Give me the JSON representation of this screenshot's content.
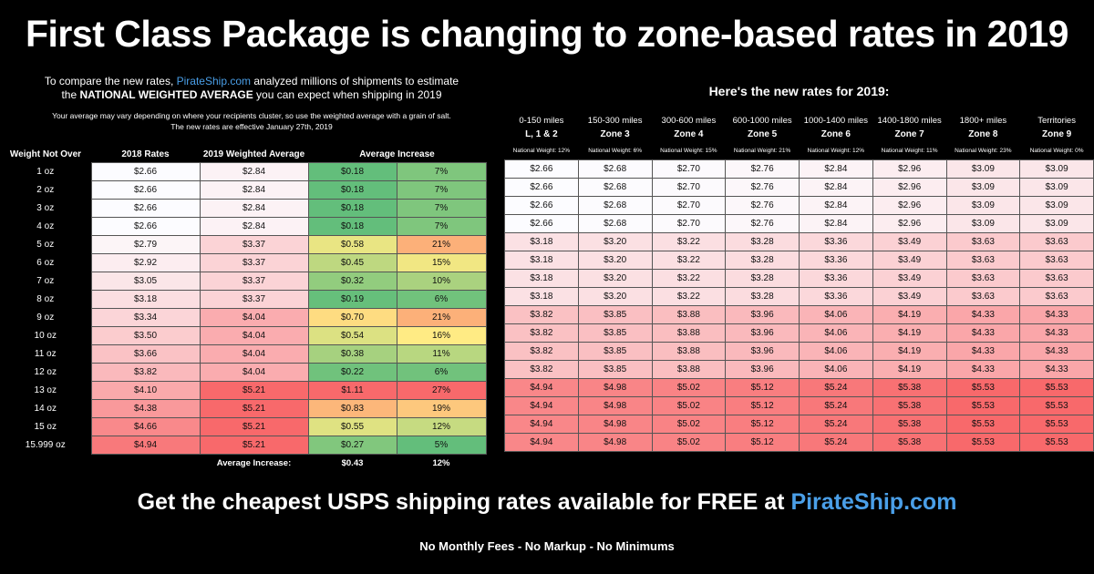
{
  "title": "First Class Package is changing to zone-based rates in 2019",
  "intro": {
    "line1_pre": "To compare the new rates, ",
    "line1_link": "PirateShip.com",
    "line1_post": " analyzed millions of shipments to estimate",
    "line2_pre": "the ",
    "line2_bold": "NATIONAL WEIGHTED AVERAGE",
    "line2_post": " you can expect when shipping in 2019",
    "small1": "Your average may vary depending on where your recipients cluster, so use the weighted average with a grain of salt.",
    "small2": "The new rates are effective January 27th, 2019"
  },
  "right_heading": "Here's the new rates for 2019:",
  "cta": {
    "text": "Get the cheapest USPS shipping rates available for FREE at ",
    "link": "PirateShip.com"
  },
  "footer": "No Monthly Fees - No Markup - No Minimums",
  "colors": {
    "background": "#000000",
    "link": "#4a9fe8",
    "green": "#63be7b",
    "yellow": "#ffeb84",
    "red": "#f8696b"
  },
  "chart_data": [
    {
      "type": "table",
      "columns": [
        "Weight Not Over",
        "2018 Rates",
        "2019 Weighted Average",
        "Average Increase",
        ""
      ],
      "rows": [
        [
          "1 oz",
          "$2.66",
          "$2.84",
          "$0.18",
          "7%"
        ],
        [
          "2 oz",
          "$2.66",
          "$2.84",
          "$0.18",
          "7%"
        ],
        [
          "3 oz",
          "$2.66",
          "$2.84",
          "$0.18",
          "7%"
        ],
        [
          "4 oz",
          "$2.66",
          "$2.84",
          "$0.18",
          "7%"
        ],
        [
          "5 oz",
          "$2.79",
          "$3.37",
          "$0.58",
          "21%"
        ],
        [
          "6 oz",
          "$2.92",
          "$3.37",
          "$0.45",
          "15%"
        ],
        [
          "7 oz",
          "$3.05",
          "$3.37",
          "$0.32",
          "10%"
        ],
        [
          "8 oz",
          "$3.18",
          "$3.37",
          "$0.19",
          "6%"
        ],
        [
          "9 oz",
          "$3.34",
          "$4.04",
          "$0.70",
          "21%"
        ],
        [
          "10 oz",
          "$3.50",
          "$4.04",
          "$0.54",
          "16%"
        ],
        [
          "11 oz",
          "$3.66",
          "$4.04",
          "$0.38",
          "11%"
        ],
        [
          "12 oz",
          "$3.82",
          "$4.04",
          "$0.22",
          "6%"
        ],
        [
          "13 oz",
          "$4.10",
          "$5.21",
          "$1.11",
          "27%"
        ],
        [
          "14 oz",
          "$4.38",
          "$5.21",
          "$0.83",
          "19%"
        ],
        [
          "15 oz",
          "$4.66",
          "$5.21",
          "$0.55",
          "12%"
        ],
        [
          "15.999 oz",
          "$4.94",
          "$5.21",
          "$0.27",
          "5%"
        ]
      ],
      "summary": {
        "label": "Average Increase:",
        "amount": "$0.43",
        "percent": "12%"
      }
    },
    {
      "type": "table",
      "zones": [
        {
          "range": "0-150 miles",
          "zone": "L, 1 & 2",
          "weight": "National Weight: 12%"
        },
        {
          "range": "150-300 miles",
          "zone": "Zone 3",
          "weight": "National Weight: 6%"
        },
        {
          "range": "300-600 miles",
          "zone": "Zone 4",
          "weight": "National Weight: 15%"
        },
        {
          "range": "600-1000 miles",
          "zone": "Zone 5",
          "weight": "National Weight: 21%"
        },
        {
          "range": "1000-1400 miles",
          "zone": "Zone 6",
          "weight": "National Weight: 12%"
        },
        {
          "range": "1400-1800 miles",
          "zone": "Zone 7",
          "weight": "National Weight: 11%"
        },
        {
          "range": "1800+ miles",
          "zone": "Zone 8",
          "weight": "National Weight: 23%"
        },
        {
          "range": "Territories",
          "zone": "Zone 9",
          "weight": "National Weight: 0%"
        }
      ],
      "rows": [
        [
          "$2.66",
          "$2.68",
          "$2.70",
          "$2.76",
          "$2.84",
          "$2.96",
          "$3.09",
          "$3.09"
        ],
        [
          "$2.66",
          "$2.68",
          "$2.70",
          "$2.76",
          "$2.84",
          "$2.96",
          "$3.09",
          "$3.09"
        ],
        [
          "$2.66",
          "$2.68",
          "$2.70",
          "$2.76",
          "$2.84",
          "$2.96",
          "$3.09",
          "$3.09"
        ],
        [
          "$2.66",
          "$2.68",
          "$2.70",
          "$2.76",
          "$2.84",
          "$2.96",
          "$3.09",
          "$3.09"
        ],
        [
          "$3.18",
          "$3.20",
          "$3.22",
          "$3.28",
          "$3.36",
          "$3.49",
          "$3.63",
          "$3.63"
        ],
        [
          "$3.18",
          "$3.20",
          "$3.22",
          "$3.28",
          "$3.36",
          "$3.49",
          "$3.63",
          "$3.63"
        ],
        [
          "$3.18",
          "$3.20",
          "$3.22",
          "$3.28",
          "$3.36",
          "$3.49",
          "$3.63",
          "$3.63"
        ],
        [
          "$3.18",
          "$3.20",
          "$3.22",
          "$3.28",
          "$3.36",
          "$3.49",
          "$3.63",
          "$3.63"
        ],
        [
          "$3.82",
          "$3.85",
          "$3.88",
          "$3.96",
          "$4.06",
          "$4.19",
          "$4.33",
          "$4.33"
        ],
        [
          "$3.82",
          "$3.85",
          "$3.88",
          "$3.96",
          "$4.06",
          "$4.19",
          "$4.33",
          "$4.33"
        ],
        [
          "$3.82",
          "$3.85",
          "$3.88",
          "$3.96",
          "$4.06",
          "$4.19",
          "$4.33",
          "$4.33"
        ],
        [
          "$3.82",
          "$3.85",
          "$3.88",
          "$3.96",
          "$4.06",
          "$4.19",
          "$4.33",
          "$4.33"
        ],
        [
          "$4.94",
          "$4.98",
          "$5.02",
          "$5.12",
          "$5.24",
          "$5.38",
          "$5.53",
          "$5.53"
        ],
        [
          "$4.94",
          "$4.98",
          "$5.02",
          "$5.12",
          "$5.24",
          "$5.38",
          "$5.53",
          "$5.53"
        ],
        [
          "$4.94",
          "$4.98",
          "$5.02",
          "$5.12",
          "$5.24",
          "$5.38",
          "$5.53",
          "$5.53"
        ],
        [
          "$4.94",
          "$4.98",
          "$5.02",
          "$5.12",
          "$5.24",
          "$5.38",
          "$5.53",
          "$5.53"
        ]
      ]
    }
  ]
}
